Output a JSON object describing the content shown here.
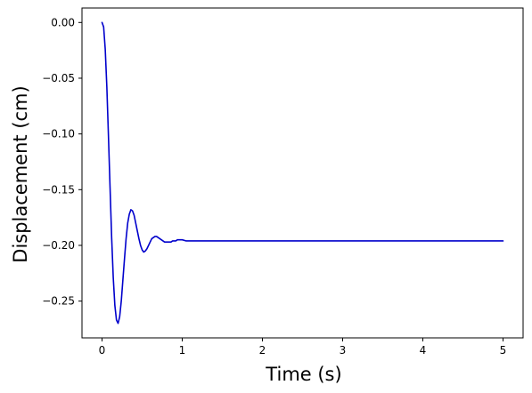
{
  "chart_data": {
    "type": "line",
    "title": "",
    "xlabel": "Time (s)",
    "ylabel": "Displacement (cm)",
    "xlim": [
      -0.25,
      5.25
    ],
    "ylim": [
      -0.283,
      0.013
    ],
    "x_ticks": [
      0,
      1,
      2,
      3,
      4,
      5
    ],
    "x_tick_labels": [
      "0",
      "1",
      "2",
      "3",
      "4",
      "5"
    ],
    "y_ticks": [
      0.0,
      -0.05,
      -0.1,
      -0.15,
      -0.2,
      -0.25
    ],
    "y_tick_labels": [
      "0.00",
      "−0.05",
      "−0.10",
      "−0.15",
      "−0.20",
      "−0.25"
    ],
    "grid": false,
    "legend": "none",
    "series": [
      {
        "color": "#0000cc",
        "x": [
          0,
          0.02,
          0.04,
          0.06,
          0.08,
          0.1,
          0.12,
          0.14,
          0.16,
          0.18,
          0.2,
          0.22,
          0.24,
          0.26,
          0.28,
          0.3,
          0.32,
          0.34,
          0.36,
          0.38,
          0.4,
          0.42,
          0.44,
          0.46,
          0.48,
          0.5,
          0.52,
          0.54,
          0.56,
          0.58,
          0.6,
          0.62,
          0.64,
          0.66,
          0.68,
          0.7,
          0.72,
          0.74,
          0.76,
          0.78,
          0.8,
          0.82,
          0.84,
          0.86,
          0.88,
          0.9,
          0.92,
          0.94,
          0.96,
          0.98,
          1.0,
          1.05,
          1.1,
          1.15,
          1.2,
          1.25,
          1.3,
          1.35,
          1.4,
          1.45,
          1.5,
          1.6,
          1.7,
          1.8,
          1.9,
          2.0,
          2.5,
          3.0,
          3.5,
          4.0,
          4.5,
          5.0
        ],
        "y": [
          0.0,
          -0.004,
          -0.024,
          -0.058,
          -0.102,
          -0.148,
          -0.193,
          -0.229,
          -0.254,
          -0.267,
          -0.27,
          -0.264,
          -0.25,
          -0.231,
          -0.212,
          -0.194,
          -0.18,
          -0.172,
          -0.168,
          -0.169,
          -0.173,
          -0.18,
          -0.187,
          -0.194,
          -0.2,
          -0.204,
          -0.206,
          -0.205,
          -0.203,
          -0.2,
          -0.197,
          -0.194,
          -0.193,
          -0.192,
          -0.192,
          -0.193,
          -0.194,
          -0.195,
          -0.196,
          -0.197,
          -0.197,
          -0.197,
          -0.197,
          -0.197,
          -0.196,
          -0.196,
          -0.196,
          -0.195,
          -0.195,
          -0.195,
          -0.195,
          -0.196,
          -0.196,
          -0.196,
          -0.196,
          -0.196,
          -0.196,
          -0.196,
          -0.196,
          -0.196,
          -0.196,
          -0.196,
          -0.196,
          -0.196,
          -0.196,
          -0.196,
          -0.196,
          -0.196,
          -0.196,
          -0.196,
          -0.196,
          -0.196
        ]
      }
    ]
  }
}
